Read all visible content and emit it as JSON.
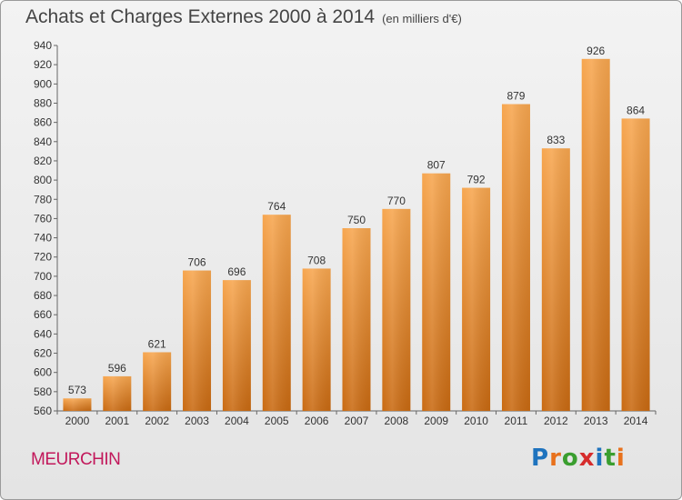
{
  "header": {
    "title": "Achats et Charges Externes 2000 à 2014",
    "unit": "(en milliers d'€)"
  },
  "footer": {
    "place": "MEURCHIN",
    "logo_text": "Proxiti",
    "logo_letters": [
      {
        "ch": "P",
        "color": "#1e73be"
      },
      {
        "ch": "r",
        "color": "#e8711c"
      },
      {
        "ch": "o",
        "color": "#3a9e2f"
      },
      {
        "ch": "x",
        "color": "#d62c2c"
      },
      {
        "ch": "i",
        "color": "#1e73be"
      },
      {
        "ch": "t",
        "color": "#3a9e2f"
      },
      {
        "ch": "i",
        "color": "#e8711c"
      }
    ]
  },
  "chart_data": {
    "type": "bar",
    "title": "Achats et Charges Externes 2000 à 2014",
    "subtitle": "(en milliers d'€)",
    "xlabel": "",
    "ylabel": "",
    "categories": [
      "2000",
      "2001",
      "2002",
      "2003",
      "2004",
      "2005",
      "2006",
      "2007",
      "2008",
      "2009",
      "2010",
      "2011",
      "2012",
      "2013",
      "2014"
    ],
    "values": [
      573,
      596,
      621,
      706,
      696,
      764,
      708,
      750,
      770,
      807,
      792,
      879,
      833,
      926,
      864
    ],
    "ylim": [
      560,
      940
    ],
    "yticks": [
      560,
      580,
      600,
      620,
      640,
      660,
      680,
      700,
      720,
      740,
      760,
      780,
      800,
      820,
      840,
      860,
      880,
      900,
      920,
      940
    ],
    "grid": false,
    "legend": "none",
    "colors": {
      "bar_top": "#f7a64f",
      "bar_bottom": "#c96a12",
      "axis": "#666666"
    }
  }
}
